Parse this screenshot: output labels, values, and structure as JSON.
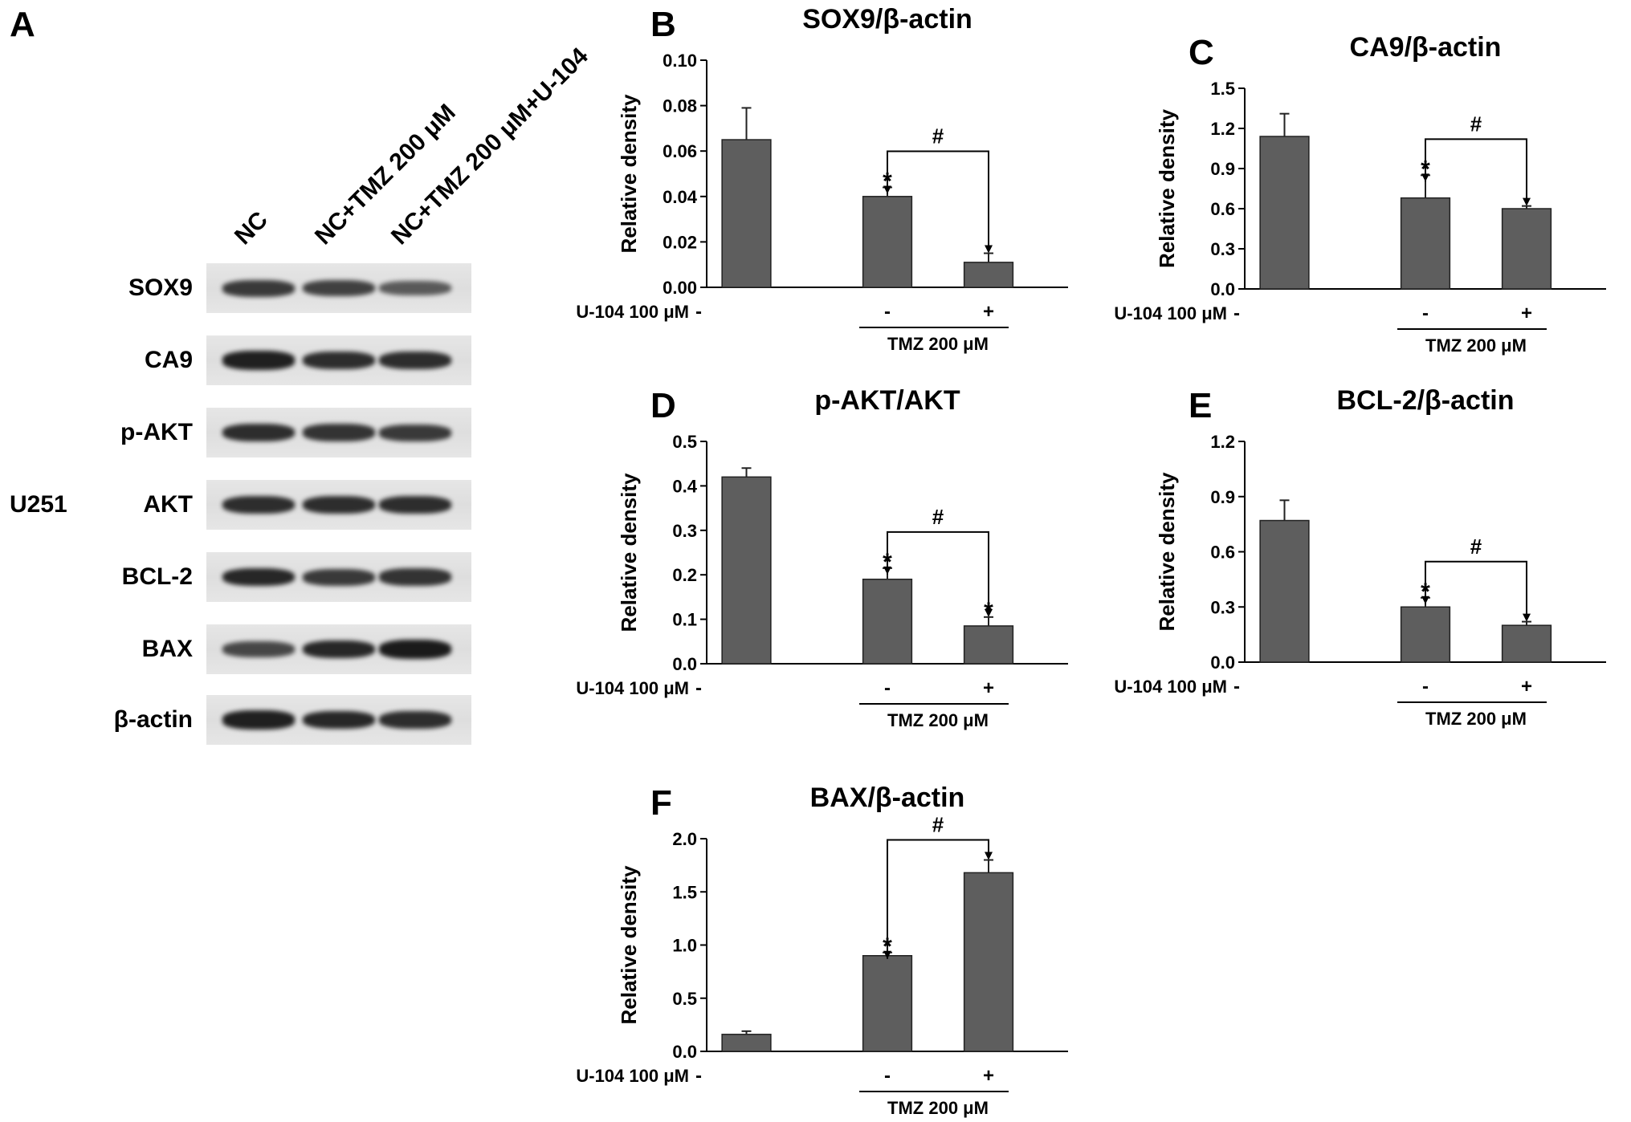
{
  "panel_a": {
    "letter": "A",
    "cell_line": "U251",
    "lanes": [
      "NC",
      "NC+TMZ 200 μM",
      "NC+TMZ 200 μM+U-104"
    ],
    "proteins": [
      "SOX9",
      "CA9",
      "p-AKT",
      "AKT",
      "BCL-2",
      "BAX",
      "β-actin"
    ],
    "band_intensity": [
      [
        0.75,
        0.7,
        0.5
      ],
      [
        0.95,
        0.85,
        0.85
      ],
      [
        0.85,
        0.8,
        0.75
      ],
      [
        0.85,
        0.85,
        0.85
      ],
      [
        0.9,
        0.75,
        0.8
      ],
      [
        0.65,
        0.9,
        1.0
      ],
      [
        0.95,
        0.9,
        0.85
      ]
    ]
  },
  "chart_data": [
    {
      "id": "B",
      "letter": "B",
      "type": "bar",
      "title": "SOX9/β-actin",
      "ylabel": "Relative density",
      "ylim": [
        0,
        0.1
      ],
      "yticks": [
        "0.00",
        "0.02",
        "0.04",
        "0.06",
        "0.08",
        "0.10"
      ],
      "categories": [
        "NC",
        "NC+TMZ 200 μM",
        "NC+TMZ 200 μM+U-104"
      ],
      "values": [
        0.065,
        0.04,
        0.011
      ],
      "errors": [
        0.014,
        0.004,
        0.004
      ],
      "significance_star": [
        false,
        true,
        false
      ],
      "bracket_label": "#",
      "u104_label": "U-104 100 μM",
      "u104_signs": [
        "-",
        "-",
        "+"
      ],
      "tmz_label": "TMZ 200 μM"
    },
    {
      "id": "C",
      "letter": "C",
      "type": "bar",
      "title": "CA9/β-actin",
      "ylabel": "Relative density",
      "ylim": [
        0,
        1.5
      ],
      "yticks": [
        "0.0",
        "0.3",
        "0.6",
        "0.9",
        "1.2",
        "1.5"
      ],
      "categories": [
        "NC",
        "NC+TMZ 200 μM",
        "NC+TMZ 200 μM+U-104"
      ],
      "values": [
        1.14,
        0.68,
        0.6
      ],
      "errors": [
        0.17,
        0.17,
        0.02
      ],
      "significance_star": [
        false,
        true,
        false
      ],
      "bracket_label": "#",
      "u104_label": "U-104 100 μM",
      "u104_signs": [
        "-",
        "-",
        "+"
      ],
      "tmz_label": "TMZ 200 μM"
    },
    {
      "id": "D",
      "letter": "D",
      "type": "bar",
      "title": "p-AKT/AKT",
      "ylabel": "Relative density",
      "ylim": [
        0,
        0.5
      ],
      "yticks": [
        "0.0",
        "0.1",
        "0.2",
        "0.3",
        "0.4",
        "0.5"
      ],
      "categories": [
        "NC",
        "NC+TMZ 200 μM",
        "NC+TMZ 200 μM+U-104"
      ],
      "values": [
        0.42,
        0.19,
        0.085
      ],
      "errors": [
        0.02,
        0.025,
        0.02
      ],
      "significance_star": [
        false,
        true,
        true
      ],
      "bracket_label": "#",
      "u104_label": "U-104 100 μM",
      "u104_signs": [
        "-",
        "-",
        "+"
      ],
      "tmz_label": "TMZ 200 μM"
    },
    {
      "id": "E",
      "letter": "E",
      "type": "bar",
      "title": "BCL-2/β-actin",
      "ylabel": "Relative density",
      "ylim": [
        0,
        1.2
      ],
      "yticks": [
        "0.0",
        "0.3",
        "0.6",
        "0.9",
        "1.2"
      ],
      "categories": [
        "NC",
        "NC+TMZ 200 μM",
        "NC+TMZ 200 μM+U-104"
      ],
      "values": [
        0.77,
        0.3,
        0.2
      ],
      "errors": [
        0.11,
        0.05,
        0.02
      ],
      "significance_star": [
        false,
        true,
        false
      ],
      "bracket_label": "#",
      "u104_label": "U-104 100 μM",
      "u104_signs": [
        "-",
        "-",
        "+"
      ],
      "tmz_label": "TMZ 200 μM"
    },
    {
      "id": "F",
      "letter": "F",
      "type": "bar",
      "title": "BAX/β-actin",
      "ylabel": "Relative density",
      "ylim": [
        0,
        2.0
      ],
      "yticks": [
        "0.0",
        "0.5",
        "1.0",
        "1.5",
        "2.0"
      ],
      "categories": [
        "NC",
        "NC+TMZ 200 μM",
        "NC+TMZ 200 μM+U-104"
      ],
      "values": [
        0.16,
        0.9,
        1.68
      ],
      "errors": [
        0.03,
        0.03,
        0.12
      ],
      "significance_star": [
        false,
        true,
        false
      ],
      "bracket_label": "#",
      "u104_label": "U-104 100 μM",
      "u104_signs": [
        "-",
        "-",
        "+"
      ],
      "tmz_label": "TMZ 200 μM"
    }
  ]
}
